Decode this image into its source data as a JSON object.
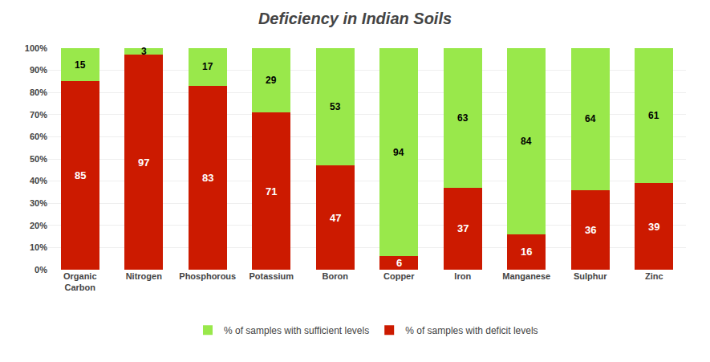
{
  "chart_data": {
    "type": "bar",
    "title": "Deficiency in Indian Soils",
    "categories": [
      "Organic\nCarbon",
      "Nitrogen",
      "Phosphorous",
      "Potassium",
      "Boron",
      "Copper",
      "Iron",
      "Manganese",
      "Sulphur",
      "Zinc"
    ],
    "series": [
      {
        "name": "% of samples with deficit levels",
        "color": "#cc1a00",
        "values": [
          85,
          97,
          83,
          71,
          47,
          6,
          37,
          16,
          36,
          39
        ]
      },
      {
        "name": "% of samples with sufficient levels",
        "color": "#99e84b",
        "values": [
          15,
          3,
          17,
          29,
          53,
          94,
          63,
          84,
          64,
          61
        ]
      }
    ],
    "stacked": true,
    "ylim": [
      0,
      100
    ],
    "yticks": [
      {
        "value": 0,
        "label": "0%"
      },
      {
        "value": 10,
        "label": "10%"
      },
      {
        "value": 20,
        "label": "20%"
      },
      {
        "value": 30,
        "label": "30%"
      },
      {
        "value": 40,
        "label": "40%"
      },
      {
        "value": 50,
        "label": "50%"
      },
      {
        "value": 60,
        "label": "60%"
      },
      {
        "value": 70,
        "label": "70%"
      },
      {
        "value": 80,
        "label": "80%"
      },
      {
        "value": 90,
        "label": "90%"
      },
      {
        "value": 100,
        "label": "100%"
      }
    ],
    "grid": true,
    "legend": "bottom",
    "data_labels": true
  }
}
